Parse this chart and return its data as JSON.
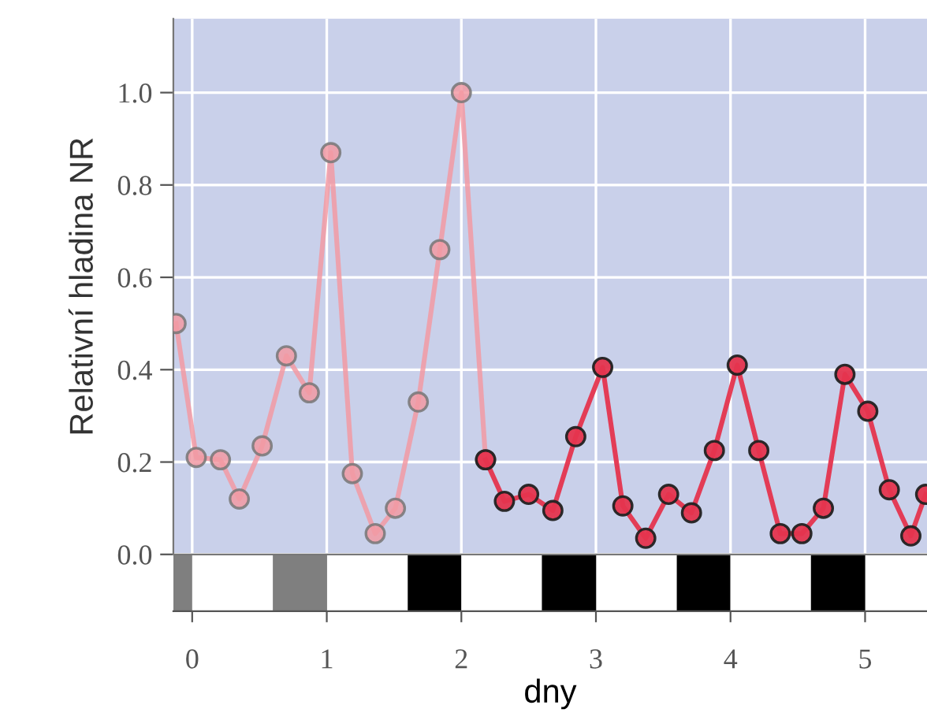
{
  "chart_data": {
    "type": "line",
    "xlabel": "dny",
    "ylabel": "Relativní hladina NR",
    "xlim": [
      -0.14,
      5.46
    ],
    "ylim": [
      0.0,
      1.16
    ],
    "xticks": [
      0,
      1,
      2,
      3,
      4,
      5
    ],
    "yticks": [
      {
        "value": 0.0,
        "label": "0.0"
      },
      {
        "value": 0.2,
        "label": "0.2"
      },
      {
        "value": 0.4,
        "label": "0.4"
      },
      {
        "value": 0.6,
        "label": "0.6"
      },
      {
        "value": 0.8,
        "label": "0.8"
      },
      {
        "value": 1.0,
        "label": "1.0"
      }
    ],
    "grid": true,
    "marker": "circle",
    "line_style": "solid",
    "series": [
      {
        "color": "#f29aa3",
        "x": [
          -0.12,
          0.03,
          0.21,
          0.35,
          0.52,
          0.7,
          0.87,
          1.03,
          1.19,
          1.36,
          1.51,
          1.68,
          1.84,
          2.0,
          2.18
        ],
        "values": [
          0.5,
          0.21,
          0.205,
          0.12,
          0.235,
          0.43,
          0.35,
          0.87,
          0.175,
          0.045,
          0.1,
          0.33,
          0.66,
          1.0,
          0.205
        ]
      },
      {
        "color": "#e5344e",
        "x": [
          2.18,
          2.32,
          2.5,
          2.68,
          2.85,
          3.05,
          3.2,
          3.37,
          3.54,
          3.71,
          3.88,
          4.05,
          4.21,
          4.37,
          4.53,
          4.69,
          4.85,
          5.02,
          5.18,
          5.34,
          5.45
        ],
        "values": [
          0.205,
          0.115,
          0.13,
          0.095,
          0.255,
          0.405,
          0.105,
          0.035,
          0.13,
          0.09,
          0.225,
          0.41,
          0.225,
          0.045,
          0.045,
          0.1,
          0.39,
          0.31,
          0.14,
          0.04,
          0.13
        ]
      }
    ]
  }
}
